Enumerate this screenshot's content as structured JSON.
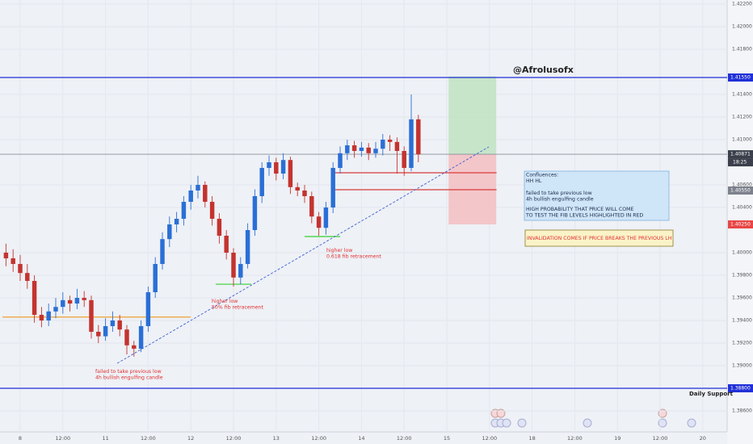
{
  "chart_data": {
    "type": "candlestick",
    "title": "@Afrolusofx",
    "x": [
      -4,
      -2,
      0,
      2,
      4,
      6,
      8,
      10,
      12,
      14,
      16,
      18,
      20,
      22,
      24,
      26,
      28,
      30,
      32,
      34,
      36,
      38,
      40,
      42,
      44,
      46,
      48,
      50,
      52,
      54,
      56,
      58,
      60,
      62,
      64,
      66,
      68,
      70,
      72,
      74,
      76,
      78,
      80,
      82,
      84,
      86,
      88,
      90,
      92,
      94,
      96,
      98,
      100,
      102,
      104,
      106,
      108,
      110,
      112
    ],
    "open": [
      1.4,
      1.3995,
      1.399,
      1.3982,
      1.3975,
      1.3945,
      1.394,
      1.3948,
      1.3952,
      1.3958,
      1.3955,
      1.396,
      1.3958,
      1.393,
      1.3926,
      1.3935,
      1.394,
      1.3932,
      1.3918,
      1.3915,
      1.3935,
      1.3965,
      1.399,
      1.4012,
      1.4025,
      1.403,
      1.4045,
      1.4055,
      1.406,
      1.4045,
      1.403,
      1.4015,
      1.4,
      1.3978,
      1.399,
      1.402,
      1.405,
      1.4075,
      1.408,
      1.407,
      1.4082,
      1.4058,
      1.4055,
      1.405,
      1.4032,
      1.4022,
      1.404,
      1.4075,
      1.4088,
      1.4095,
      1.409,
      1.4093,
      1.4088,
      1.4092,
      1.41,
      1.4098,
      1.409,
      1.4075,
      1.4118
    ],
    "high": [
      1.4008,
      1.4003,
      1.3998,
      1.399,
      1.398,
      1.3952,
      1.3955,
      1.396,
      1.3965,
      1.3962,
      1.3968,
      1.3966,
      1.3962,
      1.3936,
      1.3942,
      1.3948,
      1.3945,
      1.3936,
      1.3922,
      1.394,
      1.397,
      1.3996,
      1.4018,
      1.4032,
      1.4036,
      1.405,
      1.406,
      1.4068,
      1.4063,
      1.405,
      1.4035,
      1.402,
      1.4004,
      1.3996,
      1.4026,
      1.4056,
      1.408,
      1.4086,
      1.4084,
      1.4088,
      1.4085,
      1.4062,
      1.406,
      1.4054,
      1.4036,
      1.4045,
      1.408,
      1.4094,
      1.41,
      1.4099,
      1.4098,
      1.4097,
      1.4098,
      1.4105,
      1.4104,
      1.4102,
      1.4094,
      1.414,
      1.4122
    ],
    "low": [
      1.3988,
      1.3983,
      1.3975,
      1.3968,
      1.3938,
      1.3934,
      1.3935,
      1.3942,
      1.3946,
      1.3948,
      1.395,
      1.3952,
      1.3924,
      1.392,
      1.3922,
      1.393,
      1.3926,
      1.391,
      1.3908,
      1.3912,
      1.393,
      1.396,
      1.3985,
      1.4005,
      1.4018,
      1.4024,
      1.4038,
      1.4048,
      1.404,
      1.4024,
      1.4008,
      1.3994,
      1.397,
      1.3972,
      1.3986,
      1.4015,
      1.4044,
      1.4068,
      1.4064,
      1.4065,
      1.4052,
      1.405,
      1.4044,
      1.4026,
      1.4015,
      1.4016,
      1.4035,
      1.407,
      1.4082,
      1.4084,
      1.4085,
      1.4082,
      1.4084,
      1.4086,
      1.409,
      1.407,
      1.4068,
      1.4072,
      1.408
    ],
    "close": [
      1.3995,
      1.399,
      1.3982,
      1.3975,
      1.3945,
      1.394,
      1.3948,
      1.3952,
      1.3958,
      1.3955,
      1.396,
      1.3958,
      1.393,
      1.3926,
      1.3935,
      1.394,
      1.3932,
      1.3918,
      1.3915,
      1.3935,
      1.3965,
      1.399,
      1.4012,
      1.4025,
      1.403,
      1.4045,
      1.4055,
      1.406,
      1.4045,
      1.403,
      1.4015,
      1.4,
      1.3978,
      1.399,
      1.402,
      1.405,
      1.4075,
      1.408,
      1.407,
      1.4082,
      1.4058,
      1.4055,
      1.405,
      1.4032,
      1.4022,
      1.404,
      1.4075,
      1.4088,
      1.4095,
      1.409,
      1.4093,
      1.4088,
      1.4092,
      1.41,
      1.4098,
      1.409,
      1.4075,
      1.4118,
      1.4087
    ],
    "up_color": "#2a6fd6",
    "down_color": "#c4332f",
    "xlim": [
      -5.68,
      198.86
    ],
    "xticks": [
      {
        "value": 0,
        "label": "8"
      },
      {
        "value": 12,
        "label": "12:00"
      },
      {
        "value": 24,
        "label": "11"
      },
      {
        "value": 36,
        "label": "12:00"
      },
      {
        "value": 48,
        "label": "12"
      },
      {
        "value": 60,
        "label": "12:00"
      },
      {
        "value": 72,
        "label": "13"
      },
      {
        "value": 84,
        "label": "12:00"
      },
      {
        "value": 96,
        "label": "14"
      },
      {
        "value": 108,
        "label": "12:00"
      },
      {
        "value": 120,
        "label": "15"
      },
      {
        "value": 132,
        "label": "12:00"
      },
      {
        "value": 144,
        "label": "18"
      },
      {
        "value": 156,
        "label": "12:00"
      },
      {
        "value": 168,
        "label": "19"
      },
      {
        "value": 180,
        "label": "12:00"
      },
      {
        "value": 192,
        "label": "20"
      }
    ],
    "ylim": [
      1.38414,
      1.42236
    ],
    "yticks": [
      {
        "value": 1.422,
        "label": "1.42200"
      },
      {
        "value": 1.42,
        "label": "1.42000"
      },
      {
        "value": 1.418,
        "label": "1.41800"
      },
      {
        "value": 1.414,
        "label": "1.41400"
      },
      {
        "value": 1.412,
        "label": "1.41200"
      },
      {
        "value": 1.41,
        "label": "1.41000"
      },
      {
        "value": 1.406,
        "label": "1.40600"
      },
      {
        "value": 1.404,
        "label": "1.40400"
      },
      {
        "value": 1.4,
        "label": "1.40000"
      },
      {
        "value": 1.398,
        "label": "1.39800"
      },
      {
        "value": 1.396,
        "label": "1.39600"
      },
      {
        "value": 1.394,
        "label": "1.39400"
      },
      {
        "value": 1.392,
        "label": "1.39200"
      },
      {
        "value": 1.39,
        "label": "1.39000"
      },
      {
        "value": 1.386,
        "label": "1.38600"
      }
    ],
    "grid": true,
    "levels": [
      {
        "value": 1.4155,
        "label": "1.41550",
        "color": "#1f2fd8"
      },
      {
        "value": 1.40871,
        "label": "1.40871",
        "color": "#8a8e99"
      },
      {
        "value": 1.388,
        "label": "1.38800",
        "color": "#1f2fd8"
      }
    ],
    "countdown": "18:25",
    "price_labels": [
      {
        "value": 1.4055,
        "label": "1.40550",
        "color": "#7d818c"
      },
      {
        "value": 1.4025,
        "label": "1.40250",
        "color": "#e84646"
      }
    ],
    "segments": [
      {
        "value": 1.3943,
        "x": [
          -5,
          48
        ],
        "color": "#f0a030"
      },
      {
        "value": 1.40707,
        "x": [
          88,
          134
        ],
        "color": "#d93b3b"
      },
      {
        "value": 1.40557,
        "x": [
          88,
          134
        ],
        "color": "#d93b3b"
      },
      {
        "value": 1.39721,
        "x": [
          55,
          65
        ],
        "color": "#35d035"
      },
      {
        "value": 1.40143,
        "x": [
          80,
          90
        ],
        "color": "#35d035"
      }
    ],
    "trendline": {
      "x": [
        27.3,
        131.8
      ],
      "values": [
        1.39021,
        1.40936
      ],
      "color": "#3f5fd0"
    },
    "position": {
      "x": [
        120.5,
        133.9
      ],
      "target": 1.4156,
      "entry": 1.4087,
      "stop": 1.4025
    },
    "notes": [
      [
        "failed to take previous low",
        "4h bullish engulfing candle"
      ],
      [
        "higher low",
        "50% fib retracement"
      ],
      [
        "higher low",
        "0.618 fib retracement"
      ]
    ],
    "confluences": [
      "Confluences:",
      "HH HL",
      "failed to take previous low",
      "4h bullish engulfing candle",
      "HIGH PROBABILITY THAT PRICE WILL COME",
      " TO TEST THE FIB LEVELS HIGHLIGHTED IN RED"
    ],
    "invalidation": "INVALIDATION COMES IF PRICE BREAKS THE PREVIOUS LH",
    "support_label": "Daily Support"
  }
}
